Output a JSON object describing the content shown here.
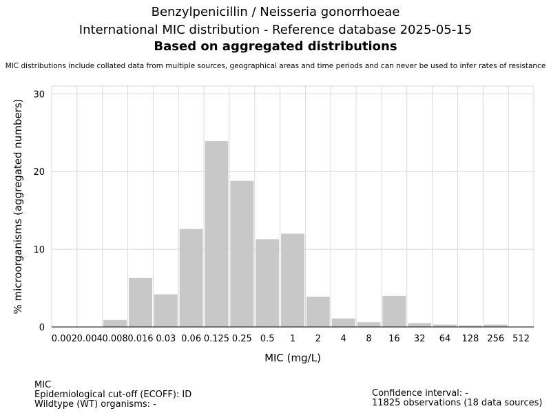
{
  "header": {
    "title_line1": "Benzylpenicillin / Neisseria gonorrhoeae",
    "title_line2": "International MIC distribution - Reference database 2025-05-15",
    "title_line3": "Based on aggregated distributions",
    "subtitle": "MIC distributions include collated data from multiple sources, geographical areas and time periods and can never be used to infer rates of resistance"
  },
  "chart_data": {
    "type": "bar",
    "xlabel": "MIC (mg/L)",
    "ylabel": "% microorganisms (aggregated numbers)",
    "categories": [
      "0.002",
      "0.004",
      "0.008",
      "0.016",
      "0.03",
      "0.06",
      "0.125",
      "0.25",
      "0.5",
      "1",
      "2",
      "4",
      "8",
      "16",
      "32",
      "64",
      "128",
      "256",
      "512"
    ],
    "values": [
      0,
      0,
      0.9,
      6.3,
      4.2,
      12.6,
      23.9,
      18.8,
      11.3,
      12.0,
      3.9,
      1.1,
      0.6,
      4.0,
      0.5,
      0.3,
      0.2,
      0.3,
      0
    ],
    "ylim": [
      0,
      31
    ],
    "yticks": [
      0,
      10,
      20,
      30
    ],
    "grid": true,
    "bar_color": "#c8c8c8",
    "grid_color": "#d9d9d9"
  },
  "footer": {
    "left_line1": "MIC",
    "left_line2": "Epidemiological cut-off (ECOFF): ID",
    "left_line3": "Wildtype (WT) organisms:  -",
    "right_line1": "Confidence interval: -",
    "right_line2": "11825 observations (18 data sources)"
  }
}
